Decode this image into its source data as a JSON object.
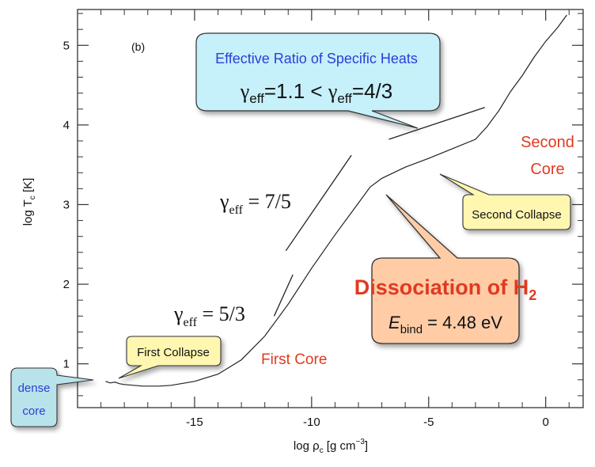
{
  "chart_data": {
    "type": "line",
    "panel_label": "(b)",
    "xlabel_parts": {
      "main": "log ρ",
      "sub": "c",
      "rest": " [g cm",
      "sup": "−3",
      "end": "]"
    },
    "ylabel_parts": {
      "main": "log T",
      "sub": "c",
      "rest": " [K]"
    },
    "xlim": [
      -20,
      1.6
    ],
    "ylim": [
      0.45,
      5.45
    ],
    "x_ticks": [
      -15,
      -10,
      -5,
      0
    ],
    "x_tick_labels": [
      "-15",
      "-10",
      "-5",
      "0"
    ],
    "y_ticks": [
      1,
      2,
      3,
      4,
      5
    ],
    "y_tick_labels": [
      "1",
      "2",
      "3",
      "4",
      "5"
    ],
    "x_minor_step": 1,
    "y_minor_step": 0.2,
    "series": [
      {
        "values": [
          [
            -18.8,
            0.78
          ],
          [
            -18.6,
            0.76
          ],
          [
            -18.4,
            0.77
          ],
          [
            -18.2,
            0.75
          ],
          [
            -18.0,
            0.74
          ],
          [
            -17.6,
            0.73
          ],
          [
            -17.2,
            0.72
          ],
          [
            -16.5,
            0.72
          ],
          [
            -16.0,
            0.73
          ],
          [
            -15.0,
            0.78
          ],
          [
            -14.0,
            0.87
          ],
          [
            -13.0,
            1.05
          ],
          [
            -12.0,
            1.35
          ],
          [
            -11.0,
            1.75
          ],
          [
            -10.0,
            2.2
          ],
          [
            -9.0,
            2.62
          ],
          [
            -8.0,
            3.02
          ],
          [
            -7.5,
            3.22
          ],
          [
            -7.0,
            3.33
          ],
          [
            -6.0,
            3.47
          ],
          [
            -5.0,
            3.58
          ],
          [
            -4.0,
            3.7
          ],
          [
            -3.0,
            3.82
          ],
          [
            -2.5,
            3.98
          ],
          [
            -2.0,
            4.18
          ],
          [
            -1.5,
            4.42
          ],
          [
            -1.0,
            4.62
          ],
          [
            -0.5,
            4.85
          ],
          [
            0.0,
            5.05
          ],
          [
            0.5,
            5.22
          ],
          [
            0.9,
            5.38
          ]
        ]
      }
    ],
    "reference_lines": [
      {
        "name": "gamma-5-3",
        "from": [
          -11.6,
          1.6
        ],
        "to": [
          -10.8,
          2.12
        ]
      },
      {
        "name": "gamma-7-5",
        "from": [
          -11.1,
          2.42
        ],
        "to": [
          -8.3,
          3.62
        ]
      },
      {
        "name": "gamma-4-3",
        "from": [
          -6.7,
          3.82
        ],
        "to": [
          -2.6,
          4.22
        ]
      }
    ],
    "annotations": {
      "gamma_5_3": {
        "base": "γ",
        "sub": "eff",
        "rest": " = 5/3"
      },
      "gamma_7_5": {
        "base": "γ",
        "sub": "eff",
        "rest": " = 7/5"
      },
      "first_core": "First Core",
      "second_core_line1": "Second",
      "second_core_line2": "Core"
    }
  },
  "callouts": {
    "effective_ratio": {
      "title": "Effective Ratio of Specific Heats",
      "formula_left": {
        "base": "γ",
        "sub": "eff",
        "rest": "=1.1 < "
      },
      "formula_right": {
        "base": "γ",
        "sub": "eff",
        "rest": "=4/3"
      }
    },
    "second_collapse": "Second Collapse",
    "first_collapse": "First Collapse",
    "dense_core_line1": "dense",
    "dense_core_line2": "core",
    "dissociation": {
      "title_main": "Dissociation of H",
      "title_sub": "2",
      "energy_var": "E",
      "energy_sub": "bind",
      "energy_rest": " = 4.48 eV"
    }
  },
  "colors": {
    "curve": "#222222",
    "red_text": "#e03a20",
    "blue_text": "#2a3fd8",
    "cyan_fill": "#c6f0fa",
    "yellow_fill": "#fff7b0",
    "peach_fill": "#ffcca6",
    "teal_fill": "#b9e3ea"
  }
}
